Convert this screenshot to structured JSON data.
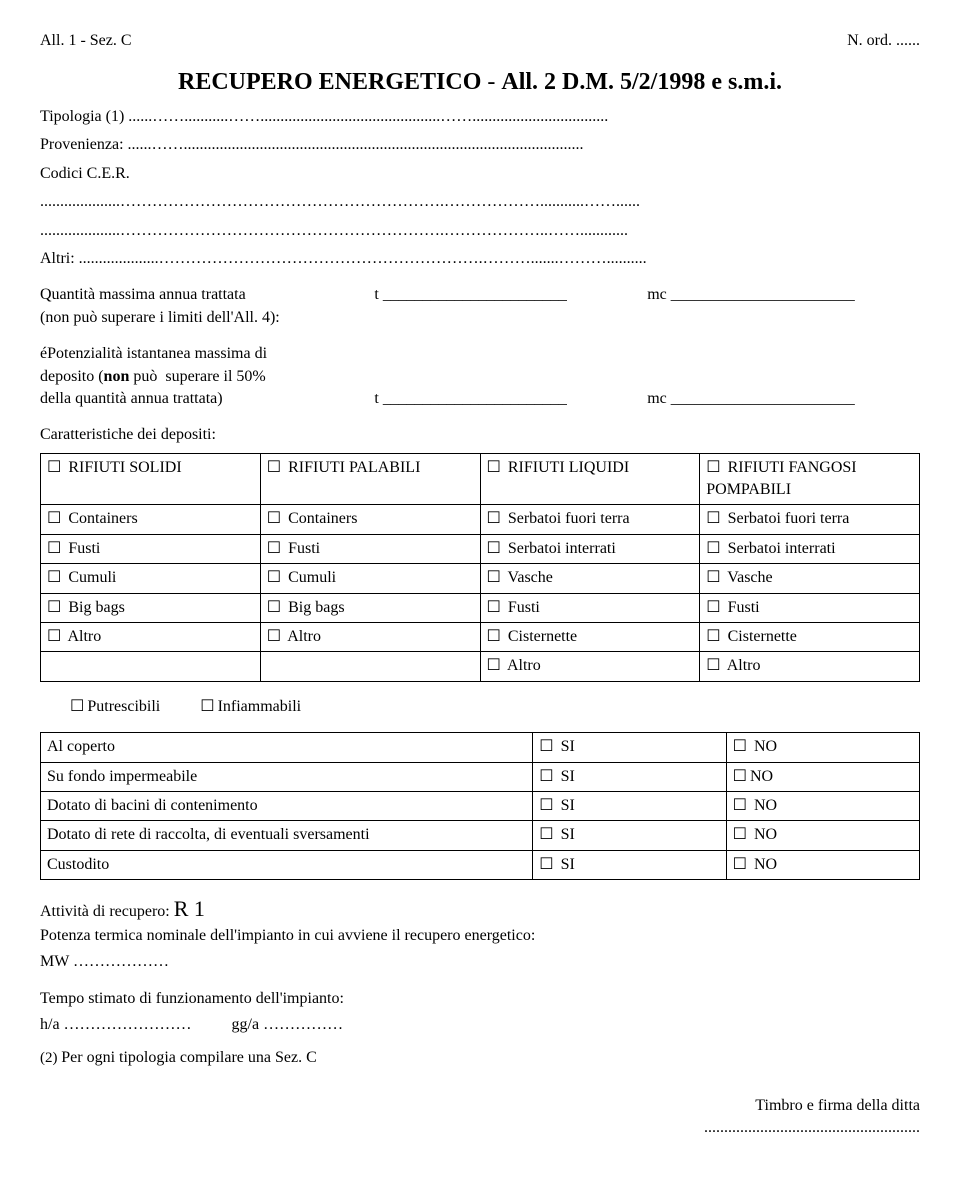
{
  "header": {
    "left": "All. 1 - Sez. C",
    "right": "N. ord. ......"
  },
  "title": {
    "main": "RECUPERO ENERGETICO",
    "sep": " - ",
    "sub": "All. 2 D.M. 5/2/1998 e s.m.i."
  },
  "fields": {
    "tipologia": "Tipologia (1) ......……...........…….............................................……..................................",
    "provenienza": "Provenienza: ......……....................................................................................................",
    "codici": "Codici C.E.R.",
    "dots1": "....................…………………………………………………….………………...........……......",
    "dots2": "....................…………………………………………………….………………..……............",
    "altri": "Altri: ....................…………………………………………………….……….......………..........",
    "qta_line1": "Quantità massima annua trattata",
    "qta_line2": "(non può superare i limiti dell'All. 4):",
    "t_blank": "t _______________________",
    "mc_blank": "mc _______________________",
    "pot_line1": "éPotenzialità istantanea massima di",
    "pot_line2": "deposito (non può  superare il 50%",
    "pot_line3": "della quantità annua trattata)"
  },
  "char_heading": "Caratteristiche dei depositi:",
  "checkbox_symbol": "☐",
  "char_table": {
    "r0": [
      "RIFIUTI SOLIDI",
      "RIFIUTI PALABILI",
      "RIFIUTI LIQUIDI",
      "RIFIUTI FANGOSI POMPABILI"
    ],
    "r1": [
      "Containers",
      "Containers",
      "Serbatoi fuori terra",
      "Serbatoi fuori terra"
    ],
    "r2": [
      "Fusti",
      "Fusti",
      "Serbatoi interrati",
      "Serbatoi interrati"
    ],
    "r3": [
      "Cumuli",
      "Cumuli",
      "Vasche",
      "Vasche"
    ],
    "r4": [
      "Big bags",
      "Big bags",
      "Fusti",
      "Fusti"
    ],
    "r5": [
      "Altro",
      "Altro",
      "Cisternette",
      "Cisternette"
    ],
    "r6": [
      "",
      "",
      "Altro",
      "Altro"
    ]
  },
  "flags": {
    "putrescibili": "Putrescibili",
    "infiammabili": "Infiammabili"
  },
  "yesno_table": {
    "rows": [
      "Al coperto",
      "Su fondo impermeabile",
      "Dotato di bacini di contenimento",
      "Dotato di rete di raccolta, di eventuali sversamenti",
      "Custodito"
    ],
    "si": "SI",
    "no": "NO"
  },
  "recupero": {
    "label_prefix": "Attività di recupero: ",
    "code": "R 1",
    "potenza": "Potenza termica nominale dell'impianto in cui avviene il recupero energetico:",
    "mw": "MW ………………",
    "tempo_label": "Tempo stimato di funzionamento dell'impianto:",
    "ha": "h/a ……………………",
    "gga": "gg/a ……………",
    "note2": "(2) Per ogni tipologia compilare una Sez. C"
  },
  "footer": {
    "timbro": "Timbro e firma della ditta",
    "dots": "......................................................"
  }
}
